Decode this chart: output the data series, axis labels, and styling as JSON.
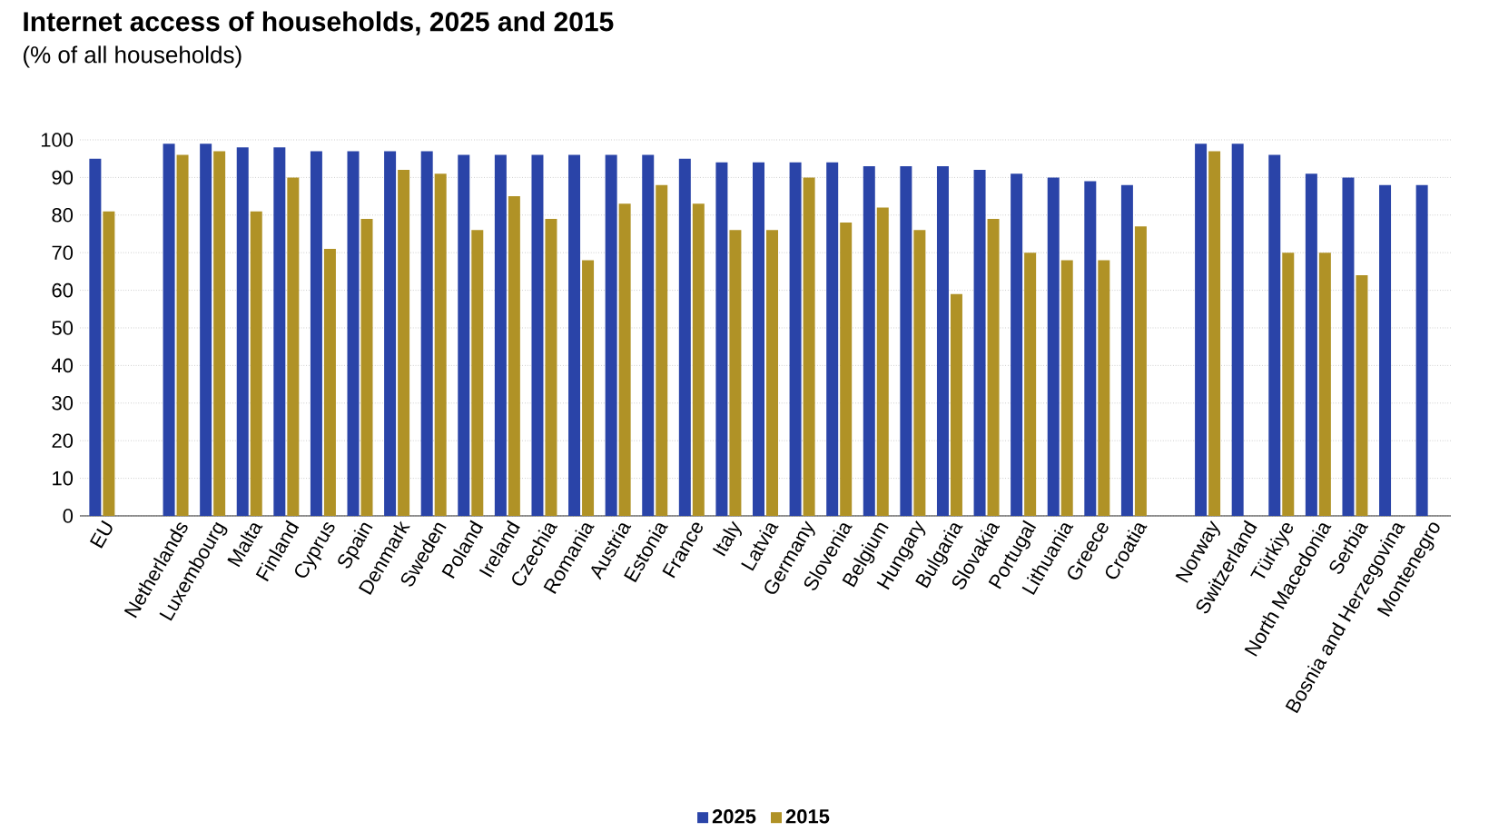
{
  "chart_data": {
    "type": "bar",
    "title": "Internet access of households, 2025 and 2015",
    "subtitle": "(% of all households)",
    "categories": [
      "EU",
      null,
      "Netherlands",
      "Luxembourg",
      "Malta",
      "Finland",
      "Cyprus",
      "Spain",
      "Denmark",
      "Sweden",
      "Poland",
      "Ireland",
      "Czechia",
      "Romania",
      "Austria",
      "Estonia",
      "France",
      "Italy",
      "Latvia",
      "Germany",
      "Slovenia",
      "Belgium",
      "Hungary",
      "Bulgaria",
      "Slovakia",
      "Portugal",
      "Lithuania",
      "Greece",
      "Croatia",
      null,
      "Norway",
      "Switzerland",
      "Türkiye",
      "North Macedonia",
      "Serbia",
      "Bosnia and Herzegovina",
      "Montenegro"
    ],
    "series": [
      {
        "name": "2025",
        "color": "#2a44a8",
        "values": [
          95,
          null,
          99,
          99,
          98,
          98,
          97,
          97,
          97,
          97,
          96,
          96,
          96,
          96,
          96,
          96,
          95,
          94,
          94,
          94,
          94,
          93,
          93,
          93,
          92,
          91,
          90,
          89,
          88,
          null,
          99,
          99,
          96,
          91,
          90,
          88,
          88
        ]
      },
      {
        "name": "2015",
        "color": "#b09226",
        "values": [
          81,
          null,
          96,
          97,
          81,
          90,
          71,
          79,
          92,
          91,
          76,
          85,
          79,
          68,
          83,
          88,
          83,
          76,
          76,
          90,
          78,
          82,
          76,
          59,
          79,
          70,
          68,
          68,
          77,
          null,
          97,
          null,
          70,
          70,
          64,
          null,
          null
        ]
      }
    ],
    "ylim": [
      0,
      100
    ],
    "yticks": [
      0,
      10,
      20,
      30,
      40,
      50,
      60,
      70,
      80,
      90,
      100
    ],
    "grid": "y",
    "legend": "bottom"
  }
}
